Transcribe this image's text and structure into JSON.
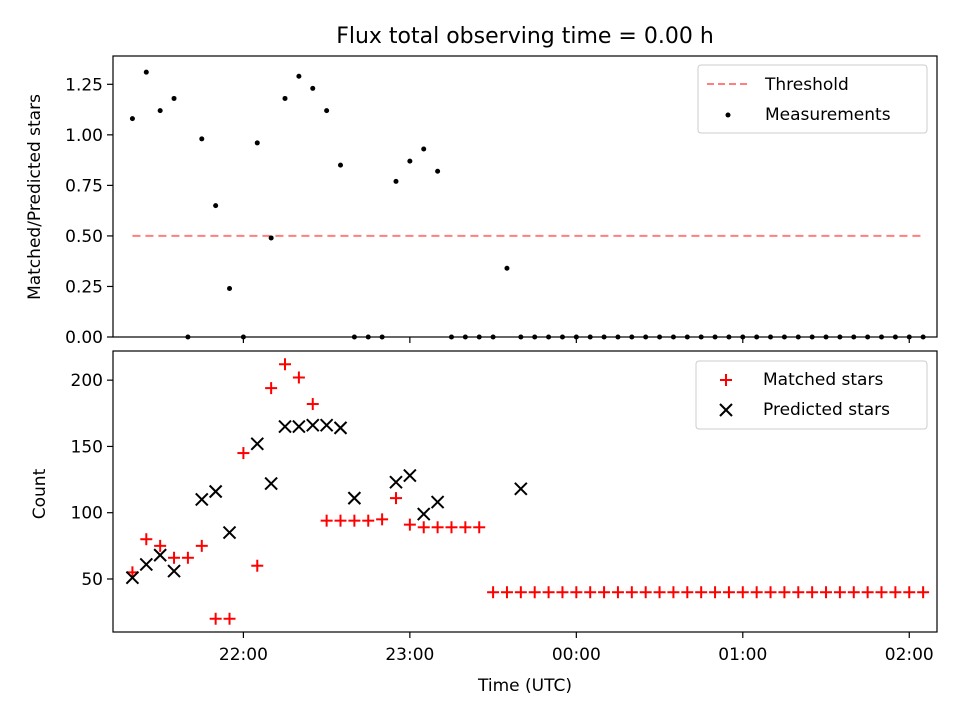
{
  "figure": {
    "title": "Flux total observing time = 0.00 h",
    "xlabel": "Time (UTC)",
    "xticks": [
      "22:00",
      "23:00",
      "00:00",
      "01:00",
      "02:00"
    ]
  },
  "chart_data": [
    {
      "type": "scatter",
      "title": "Flux total observing time = 0.00 h",
      "ylabel": "Matched/Predicted stars",
      "ylim": [
        0,
        1.39
      ],
      "yticks": [
        "0.00",
        "0.25",
        "0.50",
        "0.75",
        "1.00",
        "1.25"
      ],
      "xlim": [
        "21:13",
        "02:10"
      ],
      "legend": {
        "placement": "upper right",
        "entries": [
          "Threshold",
          "Measurements"
        ]
      },
      "threshold": {
        "name": "Threshold",
        "value": 0.5,
        "x_start": "21:20",
        "x_end": "02:05",
        "color": "#ff7f7f",
        "style": "dashed"
      },
      "series": [
        {
          "name": "Measurements",
          "color": "#000000",
          "marker": "dot",
          "x": [
            "21:20",
            "21:25",
            "21:30",
            "21:35",
            "21:40",
            "21:45",
            "21:50",
            "21:55",
            "22:00",
            "22:05",
            "22:10",
            "22:15",
            "22:20",
            "22:25",
            "22:30",
            "22:35",
            "22:40",
            "22:45",
            "22:50",
            "22:55",
            "23:00",
            "23:05",
            "23:10",
            "23:15",
            "23:20",
            "23:25",
            "23:30",
            "23:35",
            "23:40",
            "23:45",
            "23:50",
            "23:55",
            "00:00",
            "00:05",
            "00:10",
            "00:15",
            "00:20",
            "00:25",
            "00:30",
            "00:35",
            "00:40",
            "00:45",
            "00:50",
            "00:55",
            "01:00",
            "01:05",
            "01:10",
            "01:15",
            "01:20",
            "01:25",
            "01:30",
            "01:35",
            "01:40",
            "01:45",
            "01:50",
            "01:55",
            "02:00",
            "02:05"
          ],
          "y": [
            1.08,
            1.31,
            1.12,
            1.18,
            0.0,
            0.98,
            0.65,
            0.24,
            0.0,
            0.96,
            0.49,
            1.18,
            1.29,
            1.23,
            1.12,
            0.85,
            0.0,
            0.0,
            0.0,
            0.77,
            0.87,
            0.93,
            0.82,
            0.0,
            0.0,
            0.0,
            0.0,
            0.34,
            0.0,
            0.0,
            0.0,
            0.0,
            0.0,
            0.0,
            0.0,
            0.0,
            0.0,
            0.0,
            0.0,
            0.0,
            0.0,
            0.0,
            0.0,
            0.0,
            0.0,
            0.0,
            0.0,
            0.0,
            0.0,
            0.0,
            0.0,
            0.0,
            0.0,
            0.0,
            0.0,
            0.0,
            0.0,
            0.0
          ]
        }
      ]
    },
    {
      "type": "scatter",
      "ylabel": "Count",
      "ylim": [
        10,
        222
      ],
      "yticks": [
        "50",
        "100",
        "150",
        "200"
      ],
      "xlim": [
        "21:13",
        "02:10"
      ],
      "legend": {
        "placement": "upper right",
        "entries": [
          "Matched stars",
          "Predicted stars"
        ]
      },
      "series": [
        {
          "name": "Matched stars",
          "color": "#ff0000",
          "marker": "plus",
          "x": [
            "21:20",
            "21:25",
            "21:30",
            "21:35",
            "21:40",
            "21:45",
            "21:50",
            "21:55",
            "22:00",
            "22:05",
            "22:10",
            "22:15",
            "22:20",
            "22:25",
            "22:30",
            "22:35",
            "22:40",
            "22:45",
            "22:50",
            "22:55",
            "23:00",
            "23:05",
            "23:10",
            "23:15",
            "23:20",
            "23:25",
            "23:30",
            "23:35",
            "23:40",
            "23:45",
            "23:50",
            "23:55",
            "00:00",
            "00:05",
            "00:10",
            "00:15",
            "00:20",
            "00:25",
            "00:30",
            "00:35",
            "00:40",
            "00:45",
            "00:50",
            "00:55",
            "01:00",
            "01:05",
            "01:10",
            "01:15",
            "01:20",
            "01:25",
            "01:30",
            "01:35",
            "01:40",
            "01:45",
            "01:50",
            "01:55",
            "02:00",
            "02:05"
          ],
          "y": [
            55,
            80,
            75,
            66,
            66,
            75,
            20,
            20,
            145,
            60,
            194,
            212,
            202,
            182,
            94,
            94,
            94,
            94,
            95,
            111,
            91,
            89,
            89,
            89,
            89,
            89,
            40,
            40,
            40,
            40,
            40,
            40,
            40,
            40,
            40,
            40,
            40,
            40,
            40,
            40,
            40,
            40,
            40,
            40,
            40,
            40,
            40,
            40,
            40,
            40,
            40,
            40,
            40,
            40,
            40,
            40,
            40,
            40
          ]
        },
        {
          "name": "Predicted stars",
          "color": "#000000",
          "marker": "x",
          "x": [
            "21:20",
            "21:25",
            "21:30",
            "21:35",
            "21:45",
            "21:50",
            "21:55",
            "22:05",
            "22:10",
            "22:15",
            "22:20",
            "22:25",
            "22:30",
            "22:35",
            "22:40",
            "22:55",
            "23:00",
            "23:05",
            "23:10",
            "23:40"
          ],
          "y": [
            51,
            61,
            68,
            56,
            110,
            116,
            85,
            152,
            122,
            165,
            165,
            166,
            166,
            164,
            111,
            123,
            128,
            99,
            108,
            118
          ]
        }
      ]
    }
  ]
}
